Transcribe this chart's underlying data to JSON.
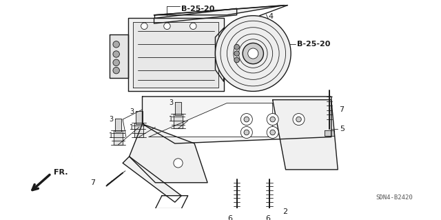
{
  "bg_color": "#ffffff",
  "line_color": "#1a1a1a",
  "fig_width": 6.4,
  "fig_height": 3.19,
  "dpi": 100,
  "diagram_code": "SDN4-B2420",
  "title_label": "B-25-20",
  "title_label2": "B-25-20",
  "lw_main": 1.0,
  "lw_thin": 0.6,
  "lw_thick": 1.4
}
